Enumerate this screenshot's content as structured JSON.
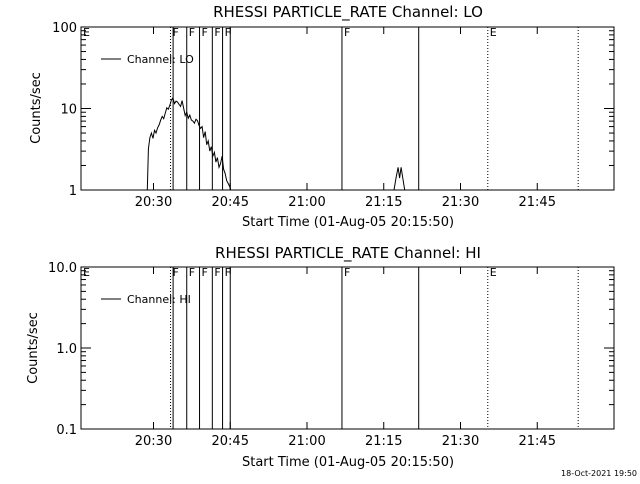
{
  "footer_timestamp": "18-Oct-2021 19:50",
  "chart_data": [
    {
      "type": "line",
      "title": "RHESSI PARTICLE_RATE Channel: LO",
      "xlabel": "Start Time (01-Aug-05 20:15:50)",
      "ylabel": "Counts/sec",
      "yscale": "log",
      "ylim": [
        1,
        100
      ],
      "xlim": [
        "20:15:50",
        "22:00:00"
      ],
      "x_ticks": [
        "20:30",
        "20:45",
        "21:00",
        "21:15",
        "21:30",
        "21:45"
      ],
      "y_ticks": [
        "1",
        "10",
        "100"
      ],
      "legend": {
        "label": "Channel: LO",
        "placement": "top-left"
      },
      "grid": false,
      "series": [
        {
          "name": "Channel: LO",
          "x_minutes_after_20:00": [
            28.8,
            29.0,
            29.3,
            29.6,
            29.9,
            30.2,
            30.5,
            30.8,
            31.1,
            31.4,
            31.7,
            32.0,
            32.3,
            32.6,
            32.9,
            33.2,
            33.5,
            33.8,
            34.1,
            34.4,
            34.7,
            35.0,
            35.3,
            35.6,
            35.9,
            36.2,
            36.5,
            36.8,
            37.1,
            37.4,
            37.7,
            38.0,
            38.3,
            38.6,
            38.9,
            39.2,
            39.5,
            39.8,
            40.1,
            40.4,
            40.7,
            41.0,
            41.3,
            41.6,
            41.9,
            42.2,
            42.5,
            42.8,
            43.1,
            43.4,
            43.7,
            44.0,
            44.3,
            44.6,
            44.9,
            45.1
          ],
          "values": [
            1.0,
            3.2,
            4.4,
            5.0,
            4.3,
            5.4,
            5.0,
            5.8,
            6.3,
            7.2,
            8.0,
            7.5,
            8.8,
            10.2,
            9.8,
            11.0,
            12.7,
            13.5,
            11.5,
            12.3,
            12.0,
            11.2,
            10.6,
            12.5,
            10.0,
            8.2,
            9.0,
            7.6,
            8.3,
            7.2,
            7.0,
            6.6,
            7.4,
            7.1,
            6.2,
            5.7,
            6.0,
            4.4,
            5.2,
            3.6,
            4.0,
            3.0,
            3.4,
            2.6,
            2.9,
            2.2,
            2.5,
            1.9,
            2.1,
            2.6,
            1.8,
            1.6,
            1.3,
            1.2,
            1.1,
            1.0
          ]
        },
        {
          "name": "",
          "x_minutes_after_20:00": [
            77.0,
            77.4,
            77.8,
            78.1,
            78.4,
            78.8,
            79.1
          ],
          "values": [
            1.0,
            1.4,
            1.9,
            1.4,
            1.9,
            1.3,
            1.0
          ]
        }
      ],
      "annotations": [
        {
          "label": "E",
          "time": "20:15:50",
          "style": "dotted"
        },
        {
          "label": "F",
          "time": "20:33:20",
          "style": "dotted"
        },
        {
          "label": "",
          "time": "20:33:50",
          "style": "solid"
        },
        {
          "label": "F",
          "time": "20:36:30",
          "style": "solid"
        },
        {
          "label": "F",
          "time": "20:39:00",
          "style": "solid"
        },
        {
          "label": "F",
          "time": "20:41:30",
          "style": "solid"
        },
        {
          "label": "F",
          "time": "20:43:30",
          "style": "solid"
        },
        {
          "label": "",
          "time": "20:45:00",
          "style": "solid"
        },
        {
          "label": "F",
          "time": "21:06:50",
          "style": "solid"
        },
        {
          "label": "",
          "time": "21:21:50",
          "style": "solid"
        },
        {
          "label": "E",
          "time": "21:35:20",
          "style": "dotted"
        },
        {
          "label": "",
          "time": "21:53:00",
          "style": "dotted"
        }
      ]
    },
    {
      "type": "line",
      "title": "RHESSI PARTICLE_RATE Channel: HI",
      "xlabel": "Start Time (01-Aug-05 20:15:50)",
      "ylabel": "Counts/sec",
      "yscale": "log",
      "ylim": [
        0.1,
        10.0
      ],
      "xlim": [
        "20:15:50",
        "22:00:00"
      ],
      "x_ticks": [
        "20:30",
        "20:45",
        "21:00",
        "21:15",
        "21:30",
        "21:45"
      ],
      "y_ticks": [
        "0.1",
        "1.0",
        "10.0"
      ],
      "legend": {
        "label": "Channel: HI",
        "placement": "top-left"
      },
      "grid": false,
      "series": [],
      "annotations": [
        {
          "label": "E",
          "time": "20:15:50",
          "style": "dotted"
        },
        {
          "label": "F",
          "time": "20:33:20",
          "style": "dotted"
        },
        {
          "label": "",
          "time": "20:33:50",
          "style": "solid"
        },
        {
          "label": "F",
          "time": "20:36:30",
          "style": "solid"
        },
        {
          "label": "F",
          "time": "20:39:00",
          "style": "solid"
        },
        {
          "label": "F",
          "time": "20:41:30",
          "style": "solid"
        },
        {
          "label": "F",
          "time": "20:43:30",
          "style": "solid"
        },
        {
          "label": "",
          "time": "20:45:00",
          "style": "solid"
        },
        {
          "label": "F",
          "time": "21:06:50",
          "style": "solid"
        },
        {
          "label": "",
          "time": "21:21:50",
          "style": "solid"
        },
        {
          "label": "E",
          "time": "21:35:20",
          "style": "dotted"
        },
        {
          "label": "",
          "time": "21:53:00",
          "style": "dotted"
        }
      ]
    }
  ]
}
